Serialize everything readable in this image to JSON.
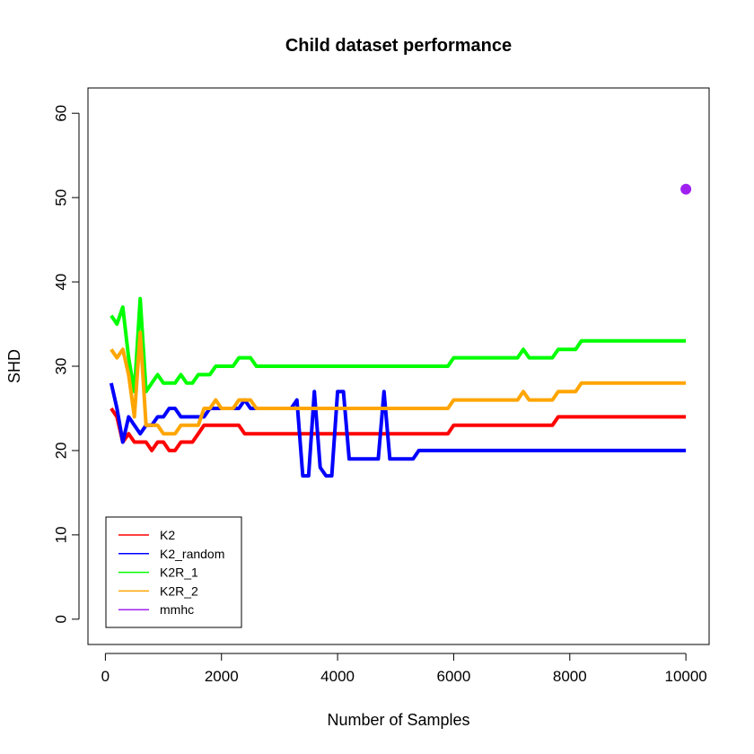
{
  "chart_data": {
    "type": "line",
    "title": "Child dataset performance",
    "xlabel": "Number of Samples",
    "ylabel": "SHD",
    "xlim": [
      -300,
      10400
    ],
    "ylim": [
      -3,
      63
    ],
    "xticks": [
      0,
      2000,
      4000,
      6000,
      8000,
      10000
    ],
    "yticks": [
      0,
      10,
      20,
      30,
      40,
      50,
      60
    ],
    "grid": false,
    "legend_position": "bottom-left",
    "series": [
      {
        "name": "K2",
        "color": "#ff0000",
        "points": [
          [
            100,
            25
          ],
          [
            200,
            24
          ],
          [
            300,
            21
          ],
          [
            400,
            22
          ],
          [
            500,
            21
          ],
          [
            600,
            21
          ],
          [
            700,
            21
          ],
          [
            800,
            20
          ],
          [
            900,
            21
          ],
          [
            1000,
            21
          ],
          [
            1100,
            20
          ],
          [
            1200,
            20
          ],
          [
            1300,
            21
          ],
          [
            1400,
            21
          ],
          [
            1500,
            21
          ],
          [
            1600,
            22
          ],
          [
            1700,
            23
          ],
          [
            1800,
            23
          ],
          [
            1900,
            23
          ],
          [
            2000,
            23
          ],
          [
            2100,
            23
          ],
          [
            2200,
            23
          ],
          [
            2300,
            23
          ],
          [
            2400,
            22
          ],
          [
            2500,
            22
          ],
          [
            3000,
            22
          ],
          [
            4000,
            22
          ],
          [
            5000,
            22
          ],
          [
            5900,
            22
          ],
          [
            6000,
            23
          ],
          [
            7000,
            23
          ],
          [
            7700,
            23
          ],
          [
            7800,
            24
          ],
          [
            10000,
            24
          ]
        ]
      },
      {
        "name": "K2_random",
        "color": "#0000ff",
        "points": [
          [
            100,
            28
          ],
          [
            200,
            25
          ],
          [
            300,
            21
          ],
          [
            400,
            24
          ],
          [
            500,
            23
          ],
          [
            600,
            22
          ],
          [
            700,
            23
          ],
          [
            800,
            23
          ],
          [
            900,
            24
          ],
          [
            1000,
            24
          ],
          [
            1100,
            25
          ],
          [
            1200,
            25
          ],
          [
            1300,
            24
          ],
          [
            1400,
            24
          ],
          [
            1500,
            24
          ],
          [
            1600,
            24
          ],
          [
            1700,
            24
          ],
          [
            1800,
            25
          ],
          [
            1900,
            25
          ],
          [
            2000,
            25
          ],
          [
            2100,
            25
          ],
          [
            2200,
            25
          ],
          [
            2300,
            25
          ],
          [
            2400,
            26
          ],
          [
            2500,
            25
          ],
          [
            2600,
            25
          ],
          [
            3200,
            25
          ],
          [
            3300,
            26
          ],
          [
            3400,
            17
          ],
          [
            3500,
            17
          ],
          [
            3600,
            27
          ],
          [
            3700,
            18
          ],
          [
            3800,
            17
          ],
          [
            3900,
            17
          ],
          [
            4000,
            27
          ],
          [
            4100,
            27
          ],
          [
            4200,
            19
          ],
          [
            4300,
            19
          ],
          [
            4700,
            19
          ],
          [
            4800,
            27
          ],
          [
            4900,
            19
          ],
          [
            5000,
            19
          ],
          [
            5300,
            19
          ],
          [
            5400,
            20
          ],
          [
            10000,
            20
          ]
        ]
      },
      {
        "name": "K2R_1",
        "color": "#00ff00",
        "points": [
          [
            100,
            36
          ],
          [
            200,
            35
          ],
          [
            300,
            37
          ],
          [
            400,
            31
          ],
          [
            500,
            27
          ],
          [
            600,
            38
          ],
          [
            700,
            27
          ],
          [
            800,
            28
          ],
          [
            900,
            29
          ],
          [
            1000,
            28
          ],
          [
            1100,
            28
          ],
          [
            1200,
            28
          ],
          [
            1300,
            29
          ],
          [
            1400,
            28
          ],
          [
            1500,
            28
          ],
          [
            1600,
            29
          ],
          [
            1700,
            29
          ],
          [
            1800,
            29
          ],
          [
            1900,
            30
          ],
          [
            2000,
            30
          ],
          [
            2100,
            30
          ],
          [
            2200,
            30
          ],
          [
            2300,
            31
          ],
          [
            2400,
            31
          ],
          [
            2500,
            31
          ],
          [
            2600,
            30
          ],
          [
            3000,
            30
          ],
          [
            4000,
            30
          ],
          [
            5000,
            30
          ],
          [
            5900,
            30
          ],
          [
            6000,
            31
          ],
          [
            7100,
            31
          ],
          [
            7200,
            32
          ],
          [
            7300,
            31
          ],
          [
            7700,
            31
          ],
          [
            7800,
            32
          ],
          [
            8100,
            32
          ],
          [
            8200,
            33
          ],
          [
            10000,
            33
          ]
        ]
      },
      {
        "name": "K2R_2",
        "color": "#ffa500",
        "points": [
          [
            100,
            32
          ],
          [
            200,
            31
          ],
          [
            300,
            32
          ],
          [
            400,
            29
          ],
          [
            500,
            24
          ],
          [
            600,
            34
          ],
          [
            700,
            23
          ],
          [
            800,
            23
          ],
          [
            900,
            23
          ],
          [
            1000,
            22
          ],
          [
            1100,
            22
          ],
          [
            1200,
            22
          ],
          [
            1300,
            23
          ],
          [
            1400,
            23
          ],
          [
            1500,
            23
          ],
          [
            1600,
            23
          ],
          [
            1700,
            25
          ],
          [
            1800,
            25
          ],
          [
            1900,
            26
          ],
          [
            2000,
            25
          ],
          [
            2100,
            25
          ],
          [
            2200,
            25
          ],
          [
            2300,
            26
          ],
          [
            2400,
            26
          ],
          [
            2500,
            26
          ],
          [
            2600,
            25
          ],
          [
            3000,
            25
          ],
          [
            4000,
            25
          ],
          [
            5000,
            25
          ],
          [
            5900,
            25
          ],
          [
            6000,
            26
          ],
          [
            7100,
            26
          ],
          [
            7200,
            27
          ],
          [
            7300,
            26
          ],
          [
            7700,
            26
          ],
          [
            7800,
            27
          ],
          [
            8100,
            27
          ],
          [
            8200,
            28
          ],
          [
            10000,
            28
          ]
        ]
      },
      {
        "name": "mmhc",
        "color": "#a020f0",
        "points": [
          [
            10000,
            51
          ]
        ]
      }
    ]
  }
}
